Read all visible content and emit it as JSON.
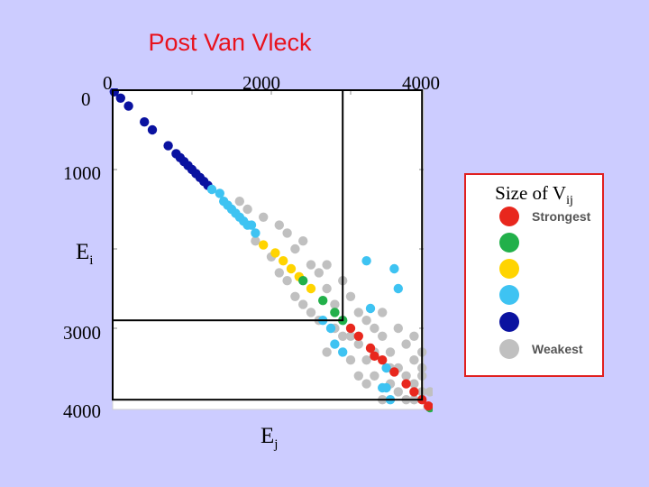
{
  "slide": {
    "background": "#ccccff"
  },
  "title": "Post Van Vleck",
  "axes": {
    "x_ticks": [
      "0",
      "2000",
      "4000"
    ],
    "y_ticks": [
      "0",
      "1000",
      "3000",
      "4000"
    ],
    "x_var": "E",
    "x_var_sub": "j",
    "y_var": "E",
    "y_var_sub": "i"
  },
  "legend": {
    "title": "Size of V",
    "title_sub": "ij",
    "items": [
      {
        "label": "Strongest",
        "color": "#e8271d"
      },
      {
        "label": "",
        "color": "#22b04a"
      },
      {
        "label": "",
        "color": "#ffd400"
      },
      {
        "label": "",
        "color": "#3ec3f2"
      },
      {
        "label": "",
        "color": "#0a12a0"
      },
      {
        "label": "Weakest",
        "color": "#c0c0c0"
      }
    ]
  },
  "chart_data": {
    "type": "scatter",
    "title": "Post Van Vleck",
    "xlabel": "Ej",
    "ylabel": "Ei",
    "xlim": [
      0,
      4000
    ],
    "ylim": [
      4000,
      0
    ],
    "x_ticks": [
      0,
      2000,
      4000
    ],
    "y_ticks": [
      0,
      1000,
      3000,
      4000
    ],
    "note_y_axis": "inverted (0 at top)",
    "series": [
      {
        "name": "Strongest",
        "color": "#e8271d",
        "points": [
          [
            3000,
            3000
          ],
          [
            3100,
            3100
          ],
          [
            3250,
            3250
          ],
          [
            3400,
            3400
          ],
          [
            3550,
            3550
          ],
          [
            3700,
            3700
          ],
          [
            3800,
            3800
          ],
          [
            3900,
            3900
          ],
          [
            3980,
            3980
          ],
          [
            3300,
            3350
          ]
        ]
      },
      {
        "name": "",
        "color": "#22b04a",
        "points": [
          [
            2400,
            2400
          ],
          [
            2650,
            2650
          ],
          [
            2800,
            2800
          ],
          [
            2900,
            2900
          ],
          [
            4000,
            4000
          ]
        ]
      },
      {
        "name": "",
        "color": "#ffd400",
        "points": [
          [
            2050,
            2050
          ],
          [
            2150,
            2150
          ],
          [
            2250,
            2250
          ],
          [
            2350,
            2350
          ],
          [
            2500,
            2500
          ],
          [
            1900,
            1950
          ]
        ]
      },
      {
        "name": "",
        "color": "#3ec3f2",
        "points": [
          [
            1250,
            1250
          ],
          [
            1400,
            1400
          ],
          [
            1500,
            1500
          ],
          [
            1600,
            1600
          ],
          [
            1700,
            1700
          ],
          [
            1800,
            1800
          ],
          [
            1350,
            1300
          ],
          [
            1450,
            1450
          ],
          [
            1550,
            1550
          ],
          [
            1650,
            1650
          ],
          [
            1750,
            1700
          ],
          [
            3600,
            2500
          ],
          [
            3250,
            2750
          ],
          [
            3200,
            2150
          ],
          [
            3550,
            2250
          ],
          [
            2650,
            2900
          ],
          [
            2750,
            3000
          ],
          [
            2800,
            3200
          ],
          [
            2900,
            3300
          ],
          [
            3450,
            3500
          ],
          [
            3400,
            3750
          ],
          [
            3450,
            3750
          ],
          [
            3500,
            3900
          ]
        ]
      },
      {
        "name": "",
        "color": "#0a12a0",
        "points": [
          [
            20,
            20
          ],
          [
            100,
            100
          ],
          [
            200,
            200
          ],
          [
            400,
            400
          ],
          [
            500,
            500
          ],
          [
            700,
            700
          ],
          [
            800,
            800
          ],
          [
            850,
            850
          ],
          [
            900,
            900
          ],
          [
            950,
            950
          ],
          [
            1000,
            1000
          ],
          [
            1050,
            1050
          ],
          [
            1100,
            1100
          ],
          [
            1150,
            1150
          ],
          [
            1200,
            1200
          ]
        ]
      },
      {
        "name": "Weakest",
        "color": "#c0c0c0",
        "points": [
          [
            1700,
            1500
          ],
          [
            1900,
            1600
          ],
          [
            2100,
            1700
          ],
          [
            1800,
            1900
          ],
          [
            2200,
            1800
          ],
          [
            2000,
            2100
          ],
          [
            2300,
            2000
          ],
          [
            2500,
            2200
          ],
          [
            2200,
            2400
          ],
          [
            2600,
            2300
          ],
          [
            2700,
            2500
          ],
          [
            2400,
            2700
          ],
          [
            2900,
            2400
          ],
          [
            3000,
            2600
          ],
          [
            2800,
            2700
          ],
          [
            2600,
            2900
          ],
          [
            3100,
            2800
          ],
          [
            3200,
            2900
          ],
          [
            2900,
            3100
          ],
          [
            3300,
            3000
          ],
          [
            3100,
            3200
          ],
          [
            3400,
            3100
          ],
          [
            3600,
            3000
          ],
          [
            3000,
            3400
          ],
          [
            3200,
            3400
          ],
          [
            3500,
            3300
          ],
          [
            3700,
            3200
          ],
          [
            3300,
            3600
          ],
          [
            3600,
            3500
          ],
          [
            3800,
            3400
          ],
          [
            3500,
            3700
          ],
          [
            3700,
            3600
          ],
          [
            3900,
            3500
          ],
          [
            3600,
            3800
          ],
          [
            3800,
            3700
          ],
          [
            3900,
            3800
          ],
          [
            2300,
            2600
          ],
          [
            2500,
            2800
          ],
          [
            2100,
            2300
          ],
          [
            3400,
            2800
          ],
          [
            3800,
            3100
          ],
          [
            3900,
            3300
          ],
          [
            3100,
            3600
          ],
          [
            2700,
            3300
          ],
          [
            3700,
            3900
          ],
          [
            3800,
            3900
          ],
          [
            1600,
            1400
          ],
          [
            2400,
            1900
          ],
          [
            2700,
            2200
          ],
          [
            2800,
            3000
          ],
          [
            3000,
            3100
          ],
          [
            3300,
            3300
          ],
          [
            3500,
            3500
          ],
          [
            3200,
            3700
          ],
          [
            3900,
            3600
          ],
          [
            4000,
            3800
          ],
          [
            3400,
            3900
          ]
        ]
      }
    ],
    "legend_position": "right"
  },
  "regions": [
    {
      "x0": 0,
      "y0": 0,
      "x1": 2900,
      "y1": 2900
    },
    {
      "x0": 0,
      "y0": 0,
      "x1": 3900,
      "y1": 3900
    }
  ]
}
